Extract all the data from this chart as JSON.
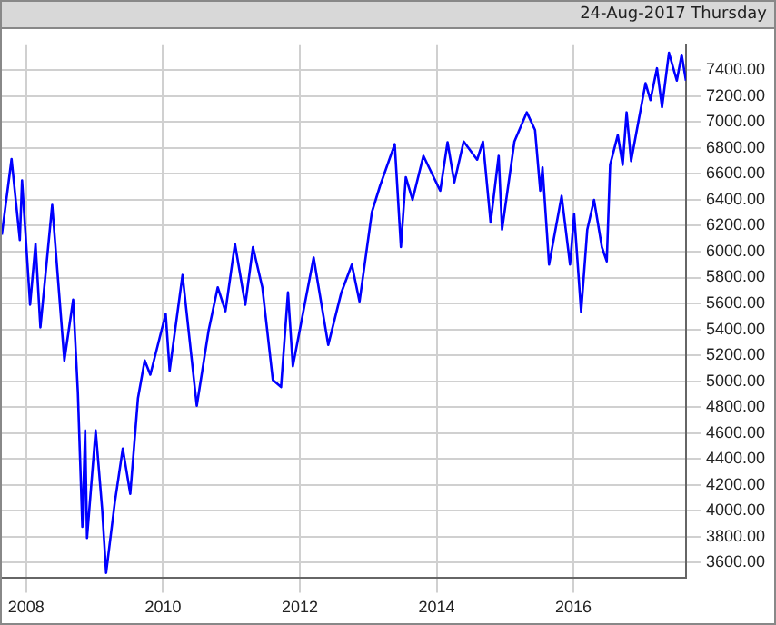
{
  "chart_data": {
    "type": "line",
    "subtitle": "24-Aug-2017 Thursday",
    "x": [
      "2007-08-24",
      "2007-10-15",
      "2007-11-28",
      "2007-12-10",
      "2008-01-22",
      "2008-02-20",
      "2008-03-17",
      "2008-05-19",
      "2008-07-23",
      "2008-09-08",
      "2008-10-03",
      "2008-10-27",
      "2008-11-11",
      "2008-11-21",
      "2009-01-06",
      "2009-02-10",
      "2009-03-03",
      "2009-04-18",
      "2009-05-31",
      "2009-07-10",
      "2009-08-20",
      "2009-09-25",
      "2009-10-25",
      "2010-01-15",
      "2010-02-05",
      "2010-04-15",
      "2010-06-30",
      "2010-09-01",
      "2010-10-20",
      "2010-11-30",
      "2011-01-20",
      "2011-03-16",
      "2011-04-26",
      "2011-06-15",
      "2011-08-10",
      "2011-09-23",
      "2011-10-30",
      "2011-11-25",
      "2012-03-15",
      "2012-06-01",
      "2012-08-10",
      "2012-10-05",
      "2012-11-15",
      "2013-01-20",
      "2013-03-05",
      "2013-05-22",
      "2013-06-24",
      "2013-07-20",
      "2013-08-25",
      "2013-10-22",
      "2014-01-20",
      "2014-02-28",
      "2014-04-05",
      "2014-05-25",
      "2014-08-05",
      "2014-09-05",
      "2014-10-16",
      "2014-11-28",
      "2014-12-16",
      "2015-02-20",
      "2015-04-27",
      "2015-06-10",
      "2015-07-08",
      "2015-07-20",
      "2015-08-24",
      "2015-10-30",
      "2015-12-14",
      "2016-01-05",
      "2016-02-11",
      "2016-03-15",
      "2016-04-20",
      "2016-06-01",
      "2016-06-27",
      "2016-07-15",
      "2016-08-25",
      "2016-09-20",
      "2016-10-11",
      "2016-11-04",
      "2017-01-20",
      "2017-02-15",
      "2017-03-22",
      "2017-04-18",
      "2017-05-25",
      "2017-07-06",
      "2017-08-01",
      "2017-08-24"
    ],
    "series": [
      {
        "color": "#0000ff",
        "values": [
          6130,
          6715,
          6090,
          6550,
          5590,
          6060,
          5415,
          6360,
          5160,
          5630,
          4915,
          3875,
          4620,
          3790,
          4620,
          4010,
          3520,
          4060,
          4480,
          4130,
          4870,
          5160,
          5050,
          5520,
          5080,
          5820,
          4810,
          5390,
          5725,
          5540,
          6060,
          5590,
          6035,
          5725,
          5010,
          4955,
          5685,
          5115,
          5955,
          5280,
          5685,
          5900,
          5615,
          6305,
          6510,
          6830,
          6035,
          6575,
          6400,
          6740,
          6470,
          6845,
          6535,
          6850,
          6710,
          6850,
          6225,
          6740,
          6170,
          6850,
          7075,
          6940,
          6470,
          6650,
          5900,
          6430,
          5900,
          6290,
          5535,
          6170,
          6400,
          6035,
          5925,
          6670,
          6900,
          6670,
          7075,
          6700,
          7300,
          7170,
          7415,
          7115,
          7535,
          7320,
          7520,
          7320
        ]
      }
    ],
    "xlim": [
      "2007-08-24",
      "2017-08-24"
    ],
    "xticks": [
      {
        "value": "2008-01-01",
        "label": "2008"
      },
      {
        "value": "2010-01-01",
        "label": "2010"
      },
      {
        "value": "2012-01-01",
        "label": "2012"
      },
      {
        "value": "2014-01-01",
        "label": "2014"
      },
      {
        "value": "2016-01-01",
        "label": "2016"
      }
    ],
    "ylim": [
      3480,
      7600
    ],
    "yticks": [
      {
        "value": 3600,
        "label": "3600.00"
      },
      {
        "value": 3800,
        "label": "3800.00"
      },
      {
        "value": 4000,
        "label": "4000.00"
      },
      {
        "value": 4200,
        "label": "4200.00"
      },
      {
        "value": 4400,
        "label": "4400.00"
      },
      {
        "value": 4600,
        "label": "4600.00"
      },
      {
        "value": 4800,
        "label": "4800.00"
      },
      {
        "value": 5000,
        "label": "5000.00"
      },
      {
        "value": 5200,
        "label": "5200.00"
      },
      {
        "value": 5400,
        "label": "5400.00"
      },
      {
        "value": 5600,
        "label": "5600.00"
      },
      {
        "value": 5800,
        "label": "5800.00"
      },
      {
        "value": 6000,
        "label": "6000.00"
      },
      {
        "value": 6200,
        "label": "6200.00"
      },
      {
        "value": 6400,
        "label": "6400.00"
      },
      {
        "value": 6600,
        "label": "6600.00"
      },
      {
        "value": 6800,
        "label": "6800.00"
      },
      {
        "value": 7000,
        "label": "7000.00"
      },
      {
        "value": 7200,
        "label": "7200.00"
      },
      {
        "value": 7400,
        "label": "7400.00"
      }
    ],
    "grid": true,
    "legend": false,
    "marker": "none",
    "line_style": "solid"
  }
}
